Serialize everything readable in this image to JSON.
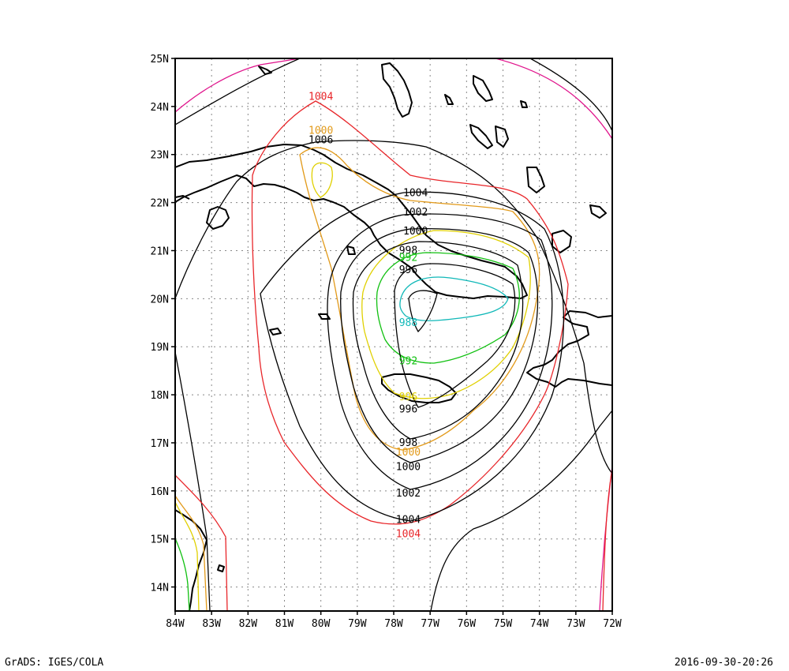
{
  "footer": {
    "left": "GrADS: IGES/COLA",
    "right": "2016-09-30-20:26"
  },
  "axes": {
    "x_ticks": [
      "84W",
      "83W",
      "82W",
      "81W",
      "80W",
      "79W",
      "78W",
      "77W",
      "76W",
      "75W",
      "74W",
      "73W",
      "72W"
    ],
    "y_ticks": [
      "25N",
      "24N",
      "23N",
      "22N",
      "21N",
      "20N",
      "19N",
      "18N",
      "17N",
      "16N",
      "15N",
      "14N"
    ]
  },
  "chart_data": {
    "type": "contour",
    "xlim": [
      -84,
      -72
    ],
    "ylim": [
      13.5,
      25
    ],
    "grid": true,
    "contour_labels": [
      {
        "text": "1004",
        "lon": -80.0,
        "lat": 24.2,
        "color": "#e8262a"
      },
      {
        "text": "1000",
        "lon": -80.0,
        "lat": 23.5,
        "color": "#e29a1a"
      },
      {
        "text": "1006",
        "lon": -80.0,
        "lat": 23.3,
        "color": "#000000"
      },
      {
        "text": "1004",
        "lon": -77.4,
        "lat": 22.2,
        "color": "#000000"
      },
      {
        "text": "1002",
        "lon": -77.4,
        "lat": 21.8,
        "color": "#000000"
      },
      {
        "text": "1000",
        "lon": -77.4,
        "lat": 21.4,
        "color": "#000000"
      },
      {
        "text": "998",
        "lon": -77.6,
        "lat": 21.0,
        "color": "#000000"
      },
      {
        "text": "992",
        "lon": -77.6,
        "lat": 20.85,
        "color": "#10c010"
      },
      {
        "text": "996",
        "lon": -77.6,
        "lat": 20.6,
        "color": "#000000"
      },
      {
        "text": "988",
        "lon": -77.6,
        "lat": 19.5,
        "color": "#10b8b8"
      },
      {
        "text": "992",
        "lon": -77.6,
        "lat": 18.7,
        "color": "#10c010"
      },
      {
        "text": "996",
        "lon": -77.6,
        "lat": 17.95,
        "color": "#e0d000"
      },
      {
        "text": "996",
        "lon": -77.6,
        "lat": 17.7,
        "color": "#000000"
      },
      {
        "text": "998",
        "lon": -77.6,
        "lat": 17.0,
        "color": "#000000"
      },
      {
        "text": "1000",
        "lon": -77.6,
        "lat": 16.8,
        "color": "#e29a1a"
      },
      {
        "text": "1000",
        "lon": -77.6,
        "lat": 16.5,
        "color": "#000000"
      },
      {
        "text": "1002",
        "lon": -77.6,
        "lat": 15.95,
        "color": "#000000"
      },
      {
        "text": "1004",
        "lon": -77.6,
        "lat": 15.4,
        "color": "#000000"
      },
      {
        "text": "1004",
        "lon": -77.6,
        "lat": 15.1,
        "color": "#e8262a"
      }
    ]
  },
  "colors": {
    "red": "#e8262a",
    "orange": "#e29a1a",
    "yellow": "#e0d000",
    "green": "#10c010",
    "cyan": "#10b8b8",
    "magenta": "#e0148c",
    "black": "#000000"
  }
}
